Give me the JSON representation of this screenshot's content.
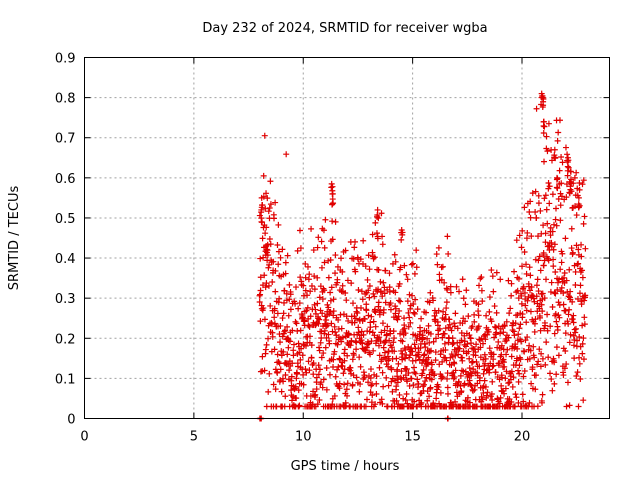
{
  "chart_data": {
    "type": "scatter",
    "title": "Day 232 of 2024, SRMTID for receiver wgba",
    "xlabel": "GPS time / hours",
    "ylabel": "SRMTID / TECUs",
    "xlim": [
      0,
      24
    ],
    "ylim": [
      0,
      0.9
    ],
    "xticks": [
      0,
      5,
      10,
      15,
      20
    ],
    "yticks": [
      0,
      0.1,
      0.2,
      0.3,
      0.4,
      0.5,
      0.6,
      0.7,
      0.8,
      0.9
    ],
    "xtick_labels": [
      "0",
      "5",
      "10",
      "15",
      "20"
    ],
    "ytick_labels": [
      "0",
      "0.1",
      "0.2",
      "0.3",
      "0.4",
      "0.5",
      "0.6",
      "0.7",
      "0.8",
      "0.9"
    ],
    "grid": true,
    "marker": "+",
    "color": "#e00000",
    "series": [
      {
        "name": "SRMTID",
        "x_start": 8.0,
        "x_end": 22.9,
        "x_step": 0.0083,
        "trend_x": [
          8.0,
          8.2,
          8.5,
          9.0,
          9.5,
          10.0,
          10.5,
          11.0,
          11.5,
          12.0,
          12.5,
          13.0,
          13.5,
          14.0,
          14.5,
          15.0,
          15.5,
          16.0,
          16.5,
          17.0,
          17.5,
          18.0,
          18.5,
          19.0,
          19.5,
          20.0,
          20.5,
          21.0,
          21.5,
          22.0,
          22.5,
          22.9
        ],
        "trend_y": [
          0.28,
          0.36,
          0.3,
          0.2,
          0.16,
          0.19,
          0.2,
          0.24,
          0.19,
          0.18,
          0.2,
          0.19,
          0.22,
          0.18,
          0.17,
          0.15,
          0.13,
          0.16,
          0.18,
          0.14,
          0.12,
          0.15,
          0.13,
          0.12,
          0.14,
          0.2,
          0.26,
          0.35,
          0.42,
          0.4,
          0.36,
          0.33
        ],
        "spikes": [
          [
            8.1,
            0.55
          ],
          [
            8.3,
            0.43
          ],
          [
            11.3,
            0.585
          ],
          [
            11.35,
            0.56
          ],
          [
            13.4,
            0.52
          ],
          [
            14.5,
            0.47
          ],
          [
            20.9,
            0.81
          ],
          [
            20.95,
            0.8
          ],
          [
            21.0,
            0.74
          ],
          [
            21.5,
            0.67
          ],
          [
            21.6,
            0.6
          ],
          [
            22.1,
            0.65
          ],
          [
            22.2,
            0.59
          ],
          [
            22.6,
            0.55
          ],
          [
            8.05,
            0.0
          ],
          [
            16.6,
            0.0
          ]
        ]
      }
    ]
  }
}
